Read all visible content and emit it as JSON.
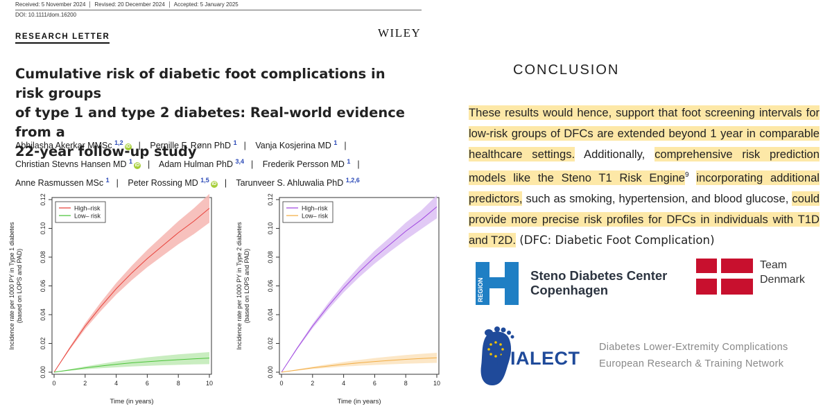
{
  "paper": {
    "meta": {
      "received": "Received: 5 November 2024",
      "revised": "Revised: 20 December 2024",
      "accepted": "Accepted: 5 January 2025"
    },
    "doi": "DOI: 10.1111/dom.16200",
    "section": "RESEARCH LETTER",
    "publisher": "WILEY",
    "title_lines": [
      "Cumulative risk of diabetic foot complications in risk groups",
      "of type 1 and type 2 diabetes: Real-world evidence from a",
      "22-year follow-up study"
    ],
    "authors": [
      {
        "name": "Abhilasha Akerkar MMSc",
        "aff": "1,2",
        "orcid": true
      },
      {
        "name": "Pernille F. Rønn PhD",
        "aff": "1",
        "orcid": false
      },
      {
        "name": "Vanja Kosjerina MD",
        "aff": "1",
        "orcid": false
      },
      {
        "name": "Christian Stevns Hansen MD",
        "aff": "1",
        "orcid": true
      },
      {
        "name": "Adam Hulman PhD",
        "aff": "3,4",
        "orcid": false
      },
      {
        "name": "Frederik Persson MD",
        "aff": "1",
        "orcid": false
      },
      {
        "name": "Anne Rasmussen MSc",
        "aff": "1",
        "orcid": false
      },
      {
        "name": "Peter Rossing MD",
        "aff": "1,5",
        "orcid": true
      },
      {
        "name": "Tarunveer S. Ahluwalia PhD",
        "aff": "1,2,6",
        "orcid": false
      }
    ],
    "orcid_glyph": "iD"
  },
  "chart_data": [
    {
      "type": "line",
      "xlabel": "Time (in years)",
      "ylabel": "Incidence rate per 1000 PY in Type 1 diabetes",
      "ylabel2": "(based on LOPS and PAD)",
      "xlim": [
        0,
        10
      ],
      "ylim": [
        0,
        0.12
      ],
      "xticks": [
        "0",
        "2",
        "4",
        "6",
        "8",
        "10"
      ],
      "yticks": [
        "0.00",
        "0.02",
        "0.04",
        "0.06",
        "0.08",
        "0.10",
        "0.12"
      ],
      "legend": "top-left",
      "x": [
        0,
        1,
        2,
        3,
        4,
        5,
        6,
        7,
        8,
        9,
        10
      ],
      "series": [
        {
          "name": "High–risk",
          "color": "#e8413a",
          "band": "#f6b6b2",
          "values": [
            0,
            0.0165,
            0.032,
            0.0455,
            0.058,
            0.069,
            0.079,
            0.088,
            0.097,
            0.105,
            0.114
          ],
          "lower": [
            0,
            0.0155,
            0.03,
            0.0425,
            0.054,
            0.064,
            0.073,
            0.081,
            0.089,
            0.096,
            0.104
          ],
          "upper": [
            0,
            0.0175,
            0.034,
            0.0485,
            0.062,
            0.074,
            0.085,
            0.095,
            0.105,
            0.114,
            0.124
          ]
        },
        {
          "name": "Low– risk",
          "color": "#4cc43a",
          "band": "#bfeab5",
          "values": [
            0,
            0.0015,
            0.003,
            0.0043,
            0.0055,
            0.0065,
            0.0073,
            0.008,
            0.0087,
            0.0093,
            0.0098
          ],
          "lower": [
            0,
            0.001,
            0.002,
            0.0028,
            0.0034,
            0.004,
            0.0044,
            0.0048,
            0.0051,
            0.0054,
            0.0056
          ],
          "upper": [
            0,
            0.002,
            0.004,
            0.0058,
            0.0075,
            0.009,
            0.0103,
            0.0114,
            0.0124,
            0.0132,
            0.014
          ]
        }
      ]
    },
    {
      "type": "line",
      "xlabel": "Time (in years)",
      "ylabel": "Incidence rate per 1000 PY in Type 2 diabetes",
      "ylabel2": "(based on LOPS and PAD)",
      "xlim": [
        0,
        10
      ],
      "ylim": [
        0,
        0.12
      ],
      "xticks": [
        "0",
        "2",
        "4",
        "6",
        "8",
        "10"
      ],
      "yticks": [
        "0.00",
        "0.02",
        "0.04",
        "0.06",
        "0.08",
        "0.10",
        "0.12"
      ],
      "legend": "top-left",
      "x": [
        0,
        1,
        2,
        3,
        4,
        5,
        6,
        7,
        8,
        9,
        10
      ],
      "series": [
        {
          "name": "High–risk",
          "color": "#a148e0",
          "band": "#dcc0f3",
          "values": [
            0,
            0.0165,
            0.032,
            0.0458,
            0.0585,
            0.0698,
            0.08,
            0.089,
            0.098,
            0.106,
            0.115
          ],
          "lower": [
            0,
            0.0157,
            0.0305,
            0.0435,
            0.0555,
            0.066,
            0.0755,
            0.084,
            0.092,
            0.0995,
            0.107
          ],
          "upper": [
            0,
            0.0173,
            0.0335,
            0.048,
            0.0615,
            0.0736,
            0.0845,
            0.094,
            0.104,
            0.1125,
            0.123
          ]
        },
        {
          "name": "Low– risk",
          "color": "#f2ad45",
          "band": "#fce3bd",
          "values": [
            0,
            0.0015,
            0.003,
            0.0043,
            0.0055,
            0.0065,
            0.0074,
            0.0082,
            0.0089,
            0.0095,
            0.01
          ],
          "lower": [
            0,
            0.0011,
            0.0022,
            0.0031,
            0.0039,
            0.0045,
            0.005,
            0.0055,
            0.0059,
            0.0062,
            0.0065
          ],
          "upper": [
            0,
            0.0019,
            0.0038,
            0.0055,
            0.0071,
            0.0085,
            0.0098,
            0.0109,
            0.0119,
            0.0128,
            0.0135
          ]
        }
      ]
    }
  ],
  "conclusion": {
    "heading": "CONCLUSION",
    "segments": [
      {
        "text": "These results would hence, support that foot screening intervals for low-risk groups of DFCs are extended beyond 1 year in comparable healthcare settings.",
        "hl": true
      },
      {
        "text": " Additionally, ",
        "hl": false
      },
      {
        "text": "comprehensive risk prediction models like the Steno T1 Risk Engine",
        "hl": true
      },
      {
        "text": "9",
        "hl": false,
        "sup": true
      },
      {
        "text": " ",
        "hl": false
      },
      {
        "text": "incorporating additional predictors,",
        "hl": true
      },
      {
        "text": " such as smoking, hypertension, and blood glucose, ",
        "hl": false
      },
      {
        "text": "could provide more precise risk profiles for DFCs in individuals with T1D and T2D.",
        "hl": true
      },
      {
        "text": " (DFC: Diabetic Foot Complication)",
        "hl": false,
        "sans": true
      }
    ]
  },
  "logos": {
    "steno_region": "REGION",
    "steno_line1": "Steno Diabetes Center",
    "steno_line2": "Copenhagen",
    "team_line1": "Team",
    "team_line2": "Denmark",
    "dialect": "DIALECT",
    "dialect_line1": "Diabetes Lower-Extremity Complications",
    "dialect_line2": "European Research & Training Network"
  },
  "colors": {
    "highlight": "#fde8a7",
    "steno_blue": "#1f7fc4",
    "dk_red": "#c8102e",
    "dialect_blue": "#1f4a9a",
    "dialect_yellow": "#f2c400"
  }
}
